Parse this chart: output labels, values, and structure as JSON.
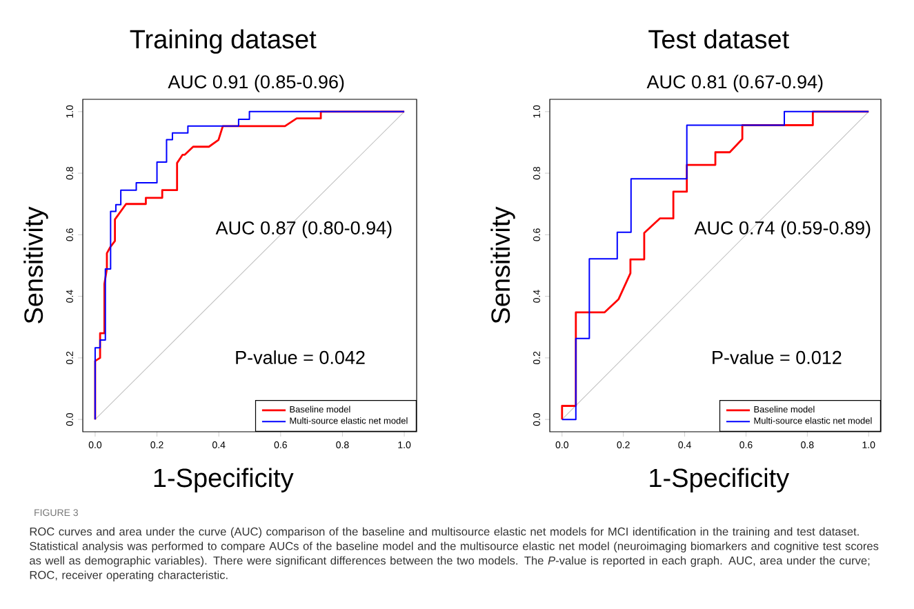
{
  "chart_data": [
    {
      "type": "line",
      "title": "Training dataset",
      "subtitle": "AUC 0.91 (0.85-0.96)",
      "xlabel": "1-Specificity",
      "ylabel": "Sensitivity",
      "xlim": [
        -0.04,
        1.04
      ],
      "ylim": [
        -0.04,
        1.04
      ],
      "xticks": [
        {
          "value": 0,
          "label": "0.0"
        },
        {
          "value": 0.2,
          "label": "0.2"
        },
        {
          "value": 0.4,
          "label": "0.4"
        },
        {
          "value": 0.6,
          "label": "0.6"
        },
        {
          "value": 0.8,
          "label": "0.8"
        },
        {
          "value": 1,
          "label": "1.0"
        }
      ],
      "yticks": [
        {
          "value": 0,
          "label": "0.0"
        },
        {
          "value": 0.2,
          "label": "0.2"
        },
        {
          "value": 0.4,
          "label": "0.4"
        },
        {
          "value": 0.6,
          "label": "0.6"
        },
        {
          "value": 0.8,
          "label": "0.8"
        },
        {
          "value": 1,
          "label": "1.0"
        }
      ],
      "grid": false,
      "legend": "bottom right",
      "marker": "none",
      "line_style": "solid",
      "series": [
        {
          "color": "#bebebe",
          "x": [
            0,
            1
          ],
          "values": [
            0,
            1
          ]
        },
        {
          "name": "Baseline model",
          "color": "#ff0000",
          "x": [
            0,
            0,
            0.016,
            0.016,
            0.03,
            0.03,
            0.038,
            0.038,
            0.049,
            0.064,
            0.064,
            0.1,
            0.164,
            0.164,
            0.217,
            0.217,
            0.265,
            0.265,
            0.283,
            0.29,
            0.317,
            0.368,
            0.399,
            0.413,
            0.614,
            0.652,
            0.73,
            0.73,
            1
          ],
          "values": [
            0,
            0.19,
            0.2,
            0.28,
            0.28,
            0.44,
            0.49,
            0.54,
            0.56,
            0.58,
            0.65,
            0.7,
            0.7,
            0.72,
            0.72,
            0.745,
            0.745,
            0.833,
            0.86,
            0.86,
            0.886,
            0.886,
            0.908,
            0.953,
            0.953,
            0.978,
            0.978,
            1,
            1
          ]
        },
        {
          "name": "Multi-source elastic net model",
          "color": "#0000ff",
          "x": [
            0,
            0,
            0.016,
            0.016,
            0.033,
            0.033,
            0.05,
            0.05,
            0.067,
            0.067,
            0.083,
            0.083,
            0.133,
            0.133,
            0.2,
            0.2,
            0.231,
            0.231,
            0.25,
            0.25,
            0.3,
            0.3,
            0.464,
            0.464,
            0.499,
            0.499,
            1
          ],
          "values": [
            0,
            0.233,
            0.233,
            0.258,
            0.258,
            0.489,
            0.489,
            0.676,
            0.676,
            0.698,
            0.698,
            0.745,
            0.745,
            0.769,
            0.769,
            0.836,
            0.836,
            0.909,
            0.909,
            0.931,
            0.931,
            0.953,
            0.953,
            0.975,
            0.975,
            1,
            1
          ]
        }
      ],
      "annotations": [
        "AUC 0.87 (0.80-0.94)",
        "P-value = 0.042",
        "FIGURE 3",
        "ROC curves and area under the curve (AUC) comparison of the baseline and multisource elastic net models for MCI identification in the training and test dataset. Statistical analysis was performed to compare AUCs of the baseline model and the multisource elastic net model (neuroimaging biomarkers and cognitive test scores as well as demographic variables). There were significant differences between the two models. The *P*-value is reported in each graph. AUC, area under the curve; ROC, receiver operating characteristic."
      ]
    },
    {
      "type": "line",
      "title": "Test dataset",
      "subtitle": "AUC 0.81 (0.67-0.94)",
      "xlabel": "1-Specificity",
      "ylabel": "Sensitivity",
      "xlim": [
        -0.04,
        1.04
      ],
      "ylim": [
        -0.04,
        1.04
      ],
      "xticks": [
        {
          "value": 0,
          "label": "0.0"
        },
        {
          "value": 0.2,
          "label": "0.2"
        },
        {
          "value": 0.4,
          "label": "0.4"
        },
        {
          "value": 0.6,
          "label": "0.6"
        },
        {
          "value": 0.8,
          "label": "0.8"
        },
        {
          "value": 1,
          "label": "1.0"
        }
      ],
      "yticks": [
        {
          "value": 0,
          "label": "0.0"
        },
        {
          "value": 0.2,
          "label": "0.2"
        },
        {
          "value": 0.4,
          "label": "0.4"
        },
        {
          "value": 0.6,
          "label": "0.6"
        },
        {
          "value": 0.8,
          "label": "0.8"
        },
        {
          "value": 1,
          "label": "1.0"
        }
      ],
      "grid": false,
      "legend": "bottom right",
      "marker": "none",
      "line_style": "solid",
      "series": [
        {
          "color": "#bebebe",
          "x": [
            0,
            1
          ],
          "values": [
            0,
            1
          ]
        },
        {
          "name": "Baseline model",
          "color": "#ff0000",
          "x": [
            0,
            0,
            0.045,
            0.045,
            0.139,
            0.184,
            0.223,
            0.223,
            0.268,
            0.268,
            0.319,
            0.363,
            0.363,
            0.407,
            0.407,
            0.5,
            0.5,
            0.547,
            0.588,
            0.588,
            0.818,
            0.818,
            1
          ],
          "values": [
            0,
            0.044,
            0.044,
            0.348,
            0.348,
            0.39,
            0.475,
            0.52,
            0.52,
            0.606,
            0.653,
            0.653,
            0.74,
            0.74,
            0.827,
            0.827,
            0.868,
            0.868,
            0.911,
            0.956,
            0.956,
            1,
            1
          ]
        },
        {
          "name": "Multi-source elastic net model",
          "color": "#0000ff",
          "x": [
            0,
            0.045,
            0.045,
            0.089,
            0.089,
            0.18,
            0.18,
            0.225,
            0.225,
            0.407,
            0.407,
            0.725,
            0.725,
            1
          ],
          "values": [
            0,
            0,
            0.263,
            0.263,
            0.522,
            0.522,
            0.608,
            0.608,
            0.782,
            0.782,
            0.956,
            0.956,
            1,
            1
          ]
        }
      ],
      "annotations": [
        "AUC 0.74 (0.59-0.89)",
        "P-value = 0.012"
      ]
    }
  ]
}
